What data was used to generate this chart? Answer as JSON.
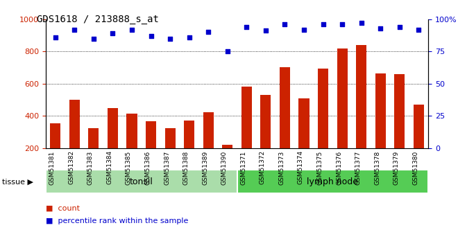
{
  "title": "GDS1618 / 213888_s_at",
  "categories": [
    "GSM51381",
    "GSM51382",
    "GSM51383",
    "GSM51384",
    "GSM51385",
    "GSM51386",
    "GSM51387",
    "GSM51388",
    "GSM51389",
    "GSM51390",
    "GSM51371",
    "GSM51372",
    "GSM51373",
    "GSM51374",
    "GSM51375",
    "GSM51376",
    "GSM51377",
    "GSM51378",
    "GSM51379",
    "GSM51380"
  ],
  "counts": [
    355,
    500,
    325,
    450,
    415,
    365,
    325,
    370,
    425,
    220,
    580,
    530,
    700,
    510,
    695,
    820,
    840,
    665,
    660,
    470
  ],
  "percentiles": [
    86,
    92,
    85,
    89,
    92,
    87,
    85,
    86,
    90,
    75,
    94,
    91,
    96,
    92,
    96,
    96,
    97,
    93,
    94,
    92
  ],
  "tonsil_count": 10,
  "lymph_count": 10,
  "bar_color": "#cc2200",
  "dot_color": "#0000cc",
  "bg_color": "#ffffff",
  "tonsil_color": "#aaddaa",
  "lymph_color": "#55cc55",
  "ymin": 200,
  "ymax": 1000,
  "yticks_left": [
    200,
    400,
    600,
    800,
    1000
  ],
  "yticks_right": [
    0,
    25,
    50,
    75,
    100
  ],
  "grid_values": [
    400,
    600,
    800
  ],
  "legend_count_label": "count",
  "legend_pct_label": "percentile rank within the sample",
  "tissue_label": "tissue",
  "tonsil_label": "tonsil",
  "lymph_label": "lymph node"
}
